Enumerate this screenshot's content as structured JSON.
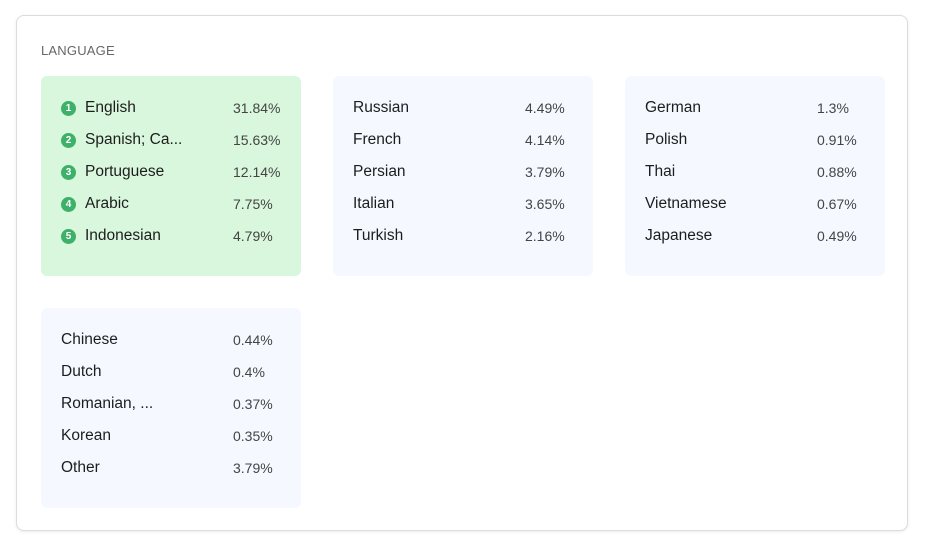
{
  "section_title": "LANGUAGE",
  "accent_color": "#3eb06a",
  "highlight_color": "#d9f7dc",
  "groups": [
    {
      "rows": [
        {
          "rank": "1",
          "name": "English",
          "pct": "31.84%"
        },
        {
          "rank": "2",
          "name": "Spanish; Ca...",
          "pct": "15.63%"
        },
        {
          "rank": "3",
          "name": "Portuguese",
          "pct": "12.14%"
        },
        {
          "rank": "4",
          "name": "Arabic",
          "pct": "7.75%"
        },
        {
          "rank": "5",
          "name": "Indonesian",
          "pct": "4.79%"
        }
      ]
    },
    {
      "rows": [
        {
          "name": "Russian",
          "pct": "4.49%"
        },
        {
          "name": "French",
          "pct": "4.14%"
        },
        {
          "name": "Persian",
          "pct": "3.79%"
        },
        {
          "name": "Italian",
          "pct": "3.65%"
        },
        {
          "name": "Turkish",
          "pct": "2.16%"
        }
      ]
    },
    {
      "rows": [
        {
          "name": "German",
          "pct": "1.3%"
        },
        {
          "name": "Polish",
          "pct": "0.91%"
        },
        {
          "name": "Thai",
          "pct": "0.88%"
        },
        {
          "name": "Vietnamese",
          "pct": "0.67%"
        },
        {
          "name": "Japanese",
          "pct": "0.49%"
        }
      ]
    },
    {
      "rows": [
        {
          "name": "Chinese",
          "pct": "0.44%"
        },
        {
          "name": "Dutch",
          "pct": "0.4%"
        },
        {
          "name": "Romanian, ...",
          "pct": "0.37%"
        },
        {
          "name": "Korean",
          "pct": "0.35%"
        },
        {
          "name": "Other",
          "pct": "3.79%"
        }
      ]
    }
  ]
}
